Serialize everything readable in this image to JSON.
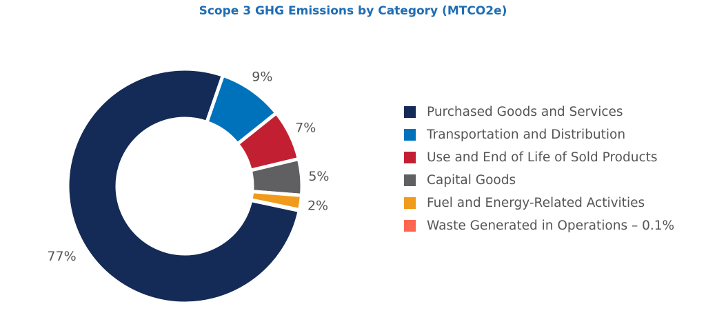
{
  "chart_data": {
    "type": "pie",
    "donut": true,
    "title": "Scope 3 GHG Emissions by Category (MTCO2e)",
    "categories": [
      "Transportation and Distribution",
      "Use and End of Life of Sold Products",
      "Capital Goods",
      "Fuel and Energy-Related Activities",
      "Waste Generated in Operations – 0.1%",
      "Purchased Goods and Services"
    ],
    "values": [
      9,
      7,
      5,
      2,
      0.1,
      77
    ],
    "data_labels": [
      "9%",
      "7%",
      "5%",
      "2%",
      "",
      "77%"
    ],
    "colors": [
      "#0072bb",
      "#c22032",
      "#606062",
      "#f09b1c",
      "#ff6652",
      "#152b57"
    ],
    "legend": {
      "placement": "right",
      "items": [
        {
          "label": "Purchased Goods and Services",
          "color": "#152b57"
        },
        {
          "label": "Transportation and Distribution",
          "color": "#0072bb"
        },
        {
          "label": "Use and End of Life of Sold Products",
          "color": "#c22032"
        },
        {
          "label": "Capital Goods",
          "color": "#606062"
        },
        {
          "label": "Fuel and Energy-Related Activities",
          "color": "#f09b1c"
        },
        {
          "label": "Waste Generated in Operations – 0.1%",
          "color": "#ff6652"
        }
      ]
    }
  }
}
